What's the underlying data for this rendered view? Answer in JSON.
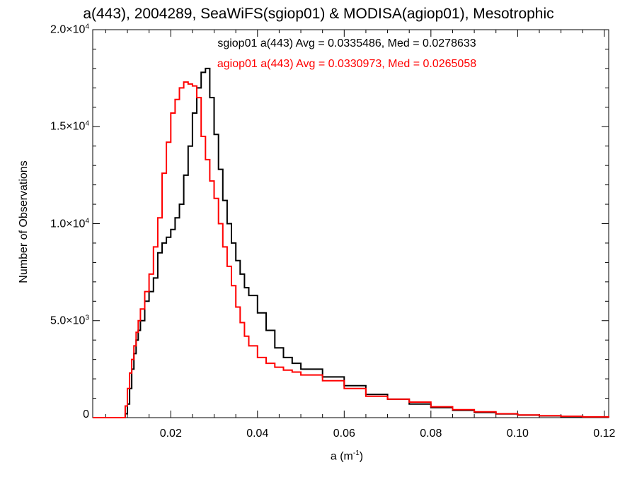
{
  "chart_data": {
    "type": "line",
    "title": "a(443), 2004289, SeaWiFS(sgiop01) & MODISA(agiop01), Mesotrophic",
    "xlabel_base": "a (m",
    "xlabel_exp": "-1",
    "xlabel_close": ")",
    "ylabel": "Number of Observations",
    "xlim": [
      0.002,
      0.121
    ],
    "ylim": [
      0,
      20000
    ],
    "xticks": [
      {
        "value": 0.02,
        "label": "0.02"
      },
      {
        "value": 0.04,
        "label": "0.04"
      },
      {
        "value": 0.06,
        "label": "0.06"
      },
      {
        "value": 0.08,
        "label": "0.08"
      },
      {
        "value": 0.1,
        "label": "0.10"
      },
      {
        "value": 0.12,
        "label": "0.12"
      }
    ],
    "yticks": [
      {
        "value": 0,
        "mant": "0",
        "exp": ""
      },
      {
        "value": 5000,
        "mant": "5.0×10",
        "exp": "3"
      },
      {
        "value": 10000,
        "mant": "1.0×10",
        "exp": "4"
      },
      {
        "value": 15000,
        "mant": "1.5×10",
        "exp": "4"
      },
      {
        "value": 20000,
        "mant": "2.0×10",
        "exp": "4"
      }
    ],
    "annotations": [
      {
        "text": "sgiop01 a(443) Avg = 0.0335486, Med = 0.0278633",
        "color": "#000000"
      },
      {
        "text": "agiop01 a(443) Avg = 0.0330973, Med = 0.0265058",
        "color": "#ff0000"
      }
    ],
    "series": [
      {
        "name": "sgiop01",
        "color": "#000000",
        "x": [
          0.002,
          0.009,
          0.0095,
          0.01,
          0.0105,
          0.011,
          0.0115,
          0.012,
          0.0125,
          0.013,
          0.014,
          0.015,
          0.016,
          0.017,
          0.018,
          0.019,
          0.02,
          0.021,
          0.022,
          0.023,
          0.024,
          0.025,
          0.026,
          0.027,
          0.028,
          0.029,
          0.03,
          0.031,
          0.032,
          0.033,
          0.034,
          0.035,
          0.036,
          0.037,
          0.038,
          0.04,
          0.042,
          0.044,
          0.046,
          0.048,
          0.05,
          0.055,
          0.06,
          0.065,
          0.07,
          0.075,
          0.08,
          0.085,
          0.09,
          0.095,
          0.1,
          0.105,
          0.11,
          0.115,
          0.121
        ],
        "y": [
          0,
          0,
          200,
          700,
          1500,
          2500,
          3300,
          4000,
          4500,
          5000,
          6000,
          6500,
          7200,
          8500,
          9000,
          9300,
          9700,
          10300,
          11000,
          12500,
          14000,
          15700,
          17000,
          17800,
          18000,
          16500,
          14600,
          12800,
          11200,
          10000,
          9000,
          8100,
          7400,
          6700,
          6300,
          5400,
          4500,
          3600,
          3100,
          2800,
          2500,
          2100,
          1650,
          1200,
          950,
          700,
          520,
          380,
          270,
          190,
          130,
          90,
          60,
          30,
          0
        ]
      },
      {
        "name": "agiop01",
        "color": "#ff0000",
        "x": [
          0.002,
          0.009,
          0.0095,
          0.01,
          0.0105,
          0.011,
          0.0115,
          0.012,
          0.0125,
          0.013,
          0.014,
          0.015,
          0.016,
          0.017,
          0.018,
          0.019,
          0.02,
          0.021,
          0.022,
          0.023,
          0.024,
          0.025,
          0.026,
          0.027,
          0.028,
          0.029,
          0.03,
          0.031,
          0.032,
          0.033,
          0.034,
          0.035,
          0.036,
          0.037,
          0.038,
          0.04,
          0.042,
          0.044,
          0.046,
          0.048,
          0.05,
          0.055,
          0.06,
          0.065,
          0.07,
          0.075,
          0.08,
          0.085,
          0.09,
          0.095,
          0.1,
          0.105,
          0.11,
          0.115,
          0.121
        ],
        "y": [
          0,
          0,
          600,
          1500,
          2300,
          3000,
          3700,
          4400,
          5000,
          5600,
          6500,
          7400,
          8800,
          10300,
          12600,
          14200,
          15700,
          16400,
          17000,
          17300,
          17200,
          17100,
          16500,
          14500,
          13300,
          12200,
          11300,
          10000,
          8800,
          7800,
          6800,
          5700,
          4900,
          4200,
          3700,
          3100,
          2800,
          2600,
          2450,
          2350,
          2200,
          1900,
          1500,
          1100,
          950,
          800,
          560,
          410,
          300,
          200,
          140,
          100,
          70,
          40,
          0
        ]
      }
    ]
  }
}
